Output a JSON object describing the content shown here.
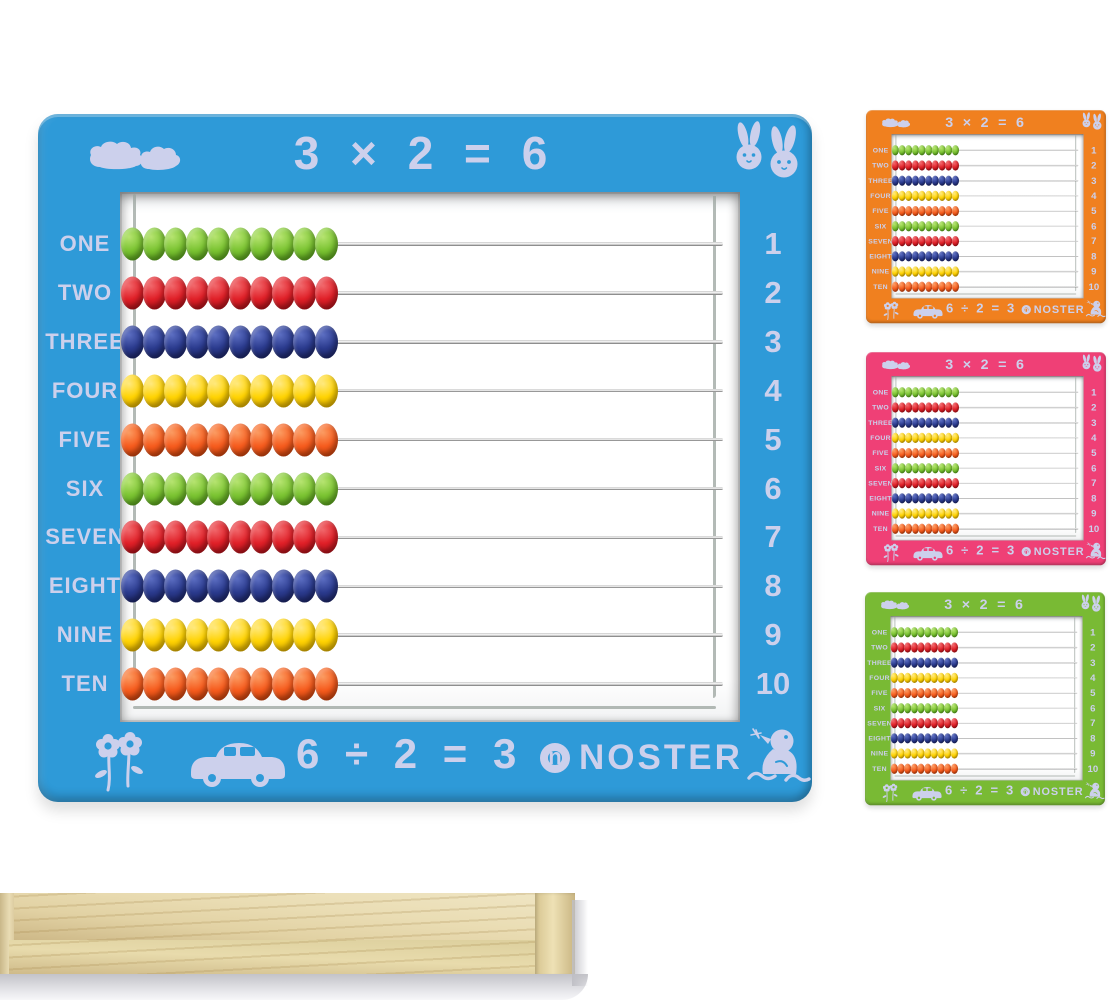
{
  "scene": {
    "background": "#ffffff"
  },
  "abacus_common": {
    "top_equation": "3 × 2 = 6",
    "bottom_equation": "6 ÷ 2 = 3",
    "brand": "NOSTER",
    "brand_initial": "n",
    "beads_per_row": 10,
    "text_color": "#ccd0ec",
    "rows": [
      {
        "label": "ONE",
        "number": "1",
        "bead_color": "green"
      },
      {
        "label": "TWO",
        "number": "2",
        "bead_color": "red"
      },
      {
        "label": "THREE",
        "number": "3",
        "bead_color": "navy"
      },
      {
        "label": "FOUR",
        "number": "4",
        "bead_color": "yellow"
      },
      {
        "label": "FIVE",
        "number": "5",
        "bead_color": "orange"
      },
      {
        "label": "SIX",
        "number": "6",
        "bead_color": "green"
      },
      {
        "label": "SEVEN",
        "number": "7",
        "bead_color": "red"
      },
      {
        "label": "EIGHT",
        "number": "8",
        "bead_color": "navy"
      },
      {
        "label": "NINE",
        "number": "9",
        "bead_color": "yellow"
      },
      {
        "label": "TEN",
        "number": "10",
        "bead_color": "orange"
      }
    ],
    "bead_palette": {
      "green": {
        "light": "#b6e470",
        "base": "#7cc433",
        "dark": "#4e9a15"
      },
      "red": {
        "light": "#f1676b",
        "base": "#e02028",
        "dark": "#a30d14"
      },
      "navy": {
        "light": "#5c6ec2",
        "base": "#2b3b8e",
        "dark": "#181f5e"
      },
      "yellow": {
        "light": "#ffe97e",
        "base": "#ffd303",
        "dark": "#d7a500"
      },
      "orange": {
        "light": "#fb9b61",
        "base": "#f65c1e",
        "dark": "#bf3a06"
      }
    },
    "decorations": [
      "clouds-icon",
      "rabbits-icon",
      "flowers-icon",
      "car-icon",
      "bird-in-water-icon"
    ]
  },
  "variants": [
    {
      "id": "blue",
      "frame_color": "#2e9ad8",
      "edge_color": "#156fa8"
    },
    {
      "id": "orange",
      "frame_color": "#f0801f",
      "edge_color": "#c05c08"
    },
    {
      "id": "pink",
      "frame_color": "#ef4076",
      "edge_color": "#c02257"
    },
    {
      "id": "green",
      "frame_color": "#79ba34",
      "edge_color": "#558f17"
    }
  ],
  "wood_photo": {
    "wood_light": "#efe5c3",
    "wood_mid": "#e2d2a4",
    "wood_dark": "#cdb887",
    "shadow": "#c3c3c8"
  }
}
